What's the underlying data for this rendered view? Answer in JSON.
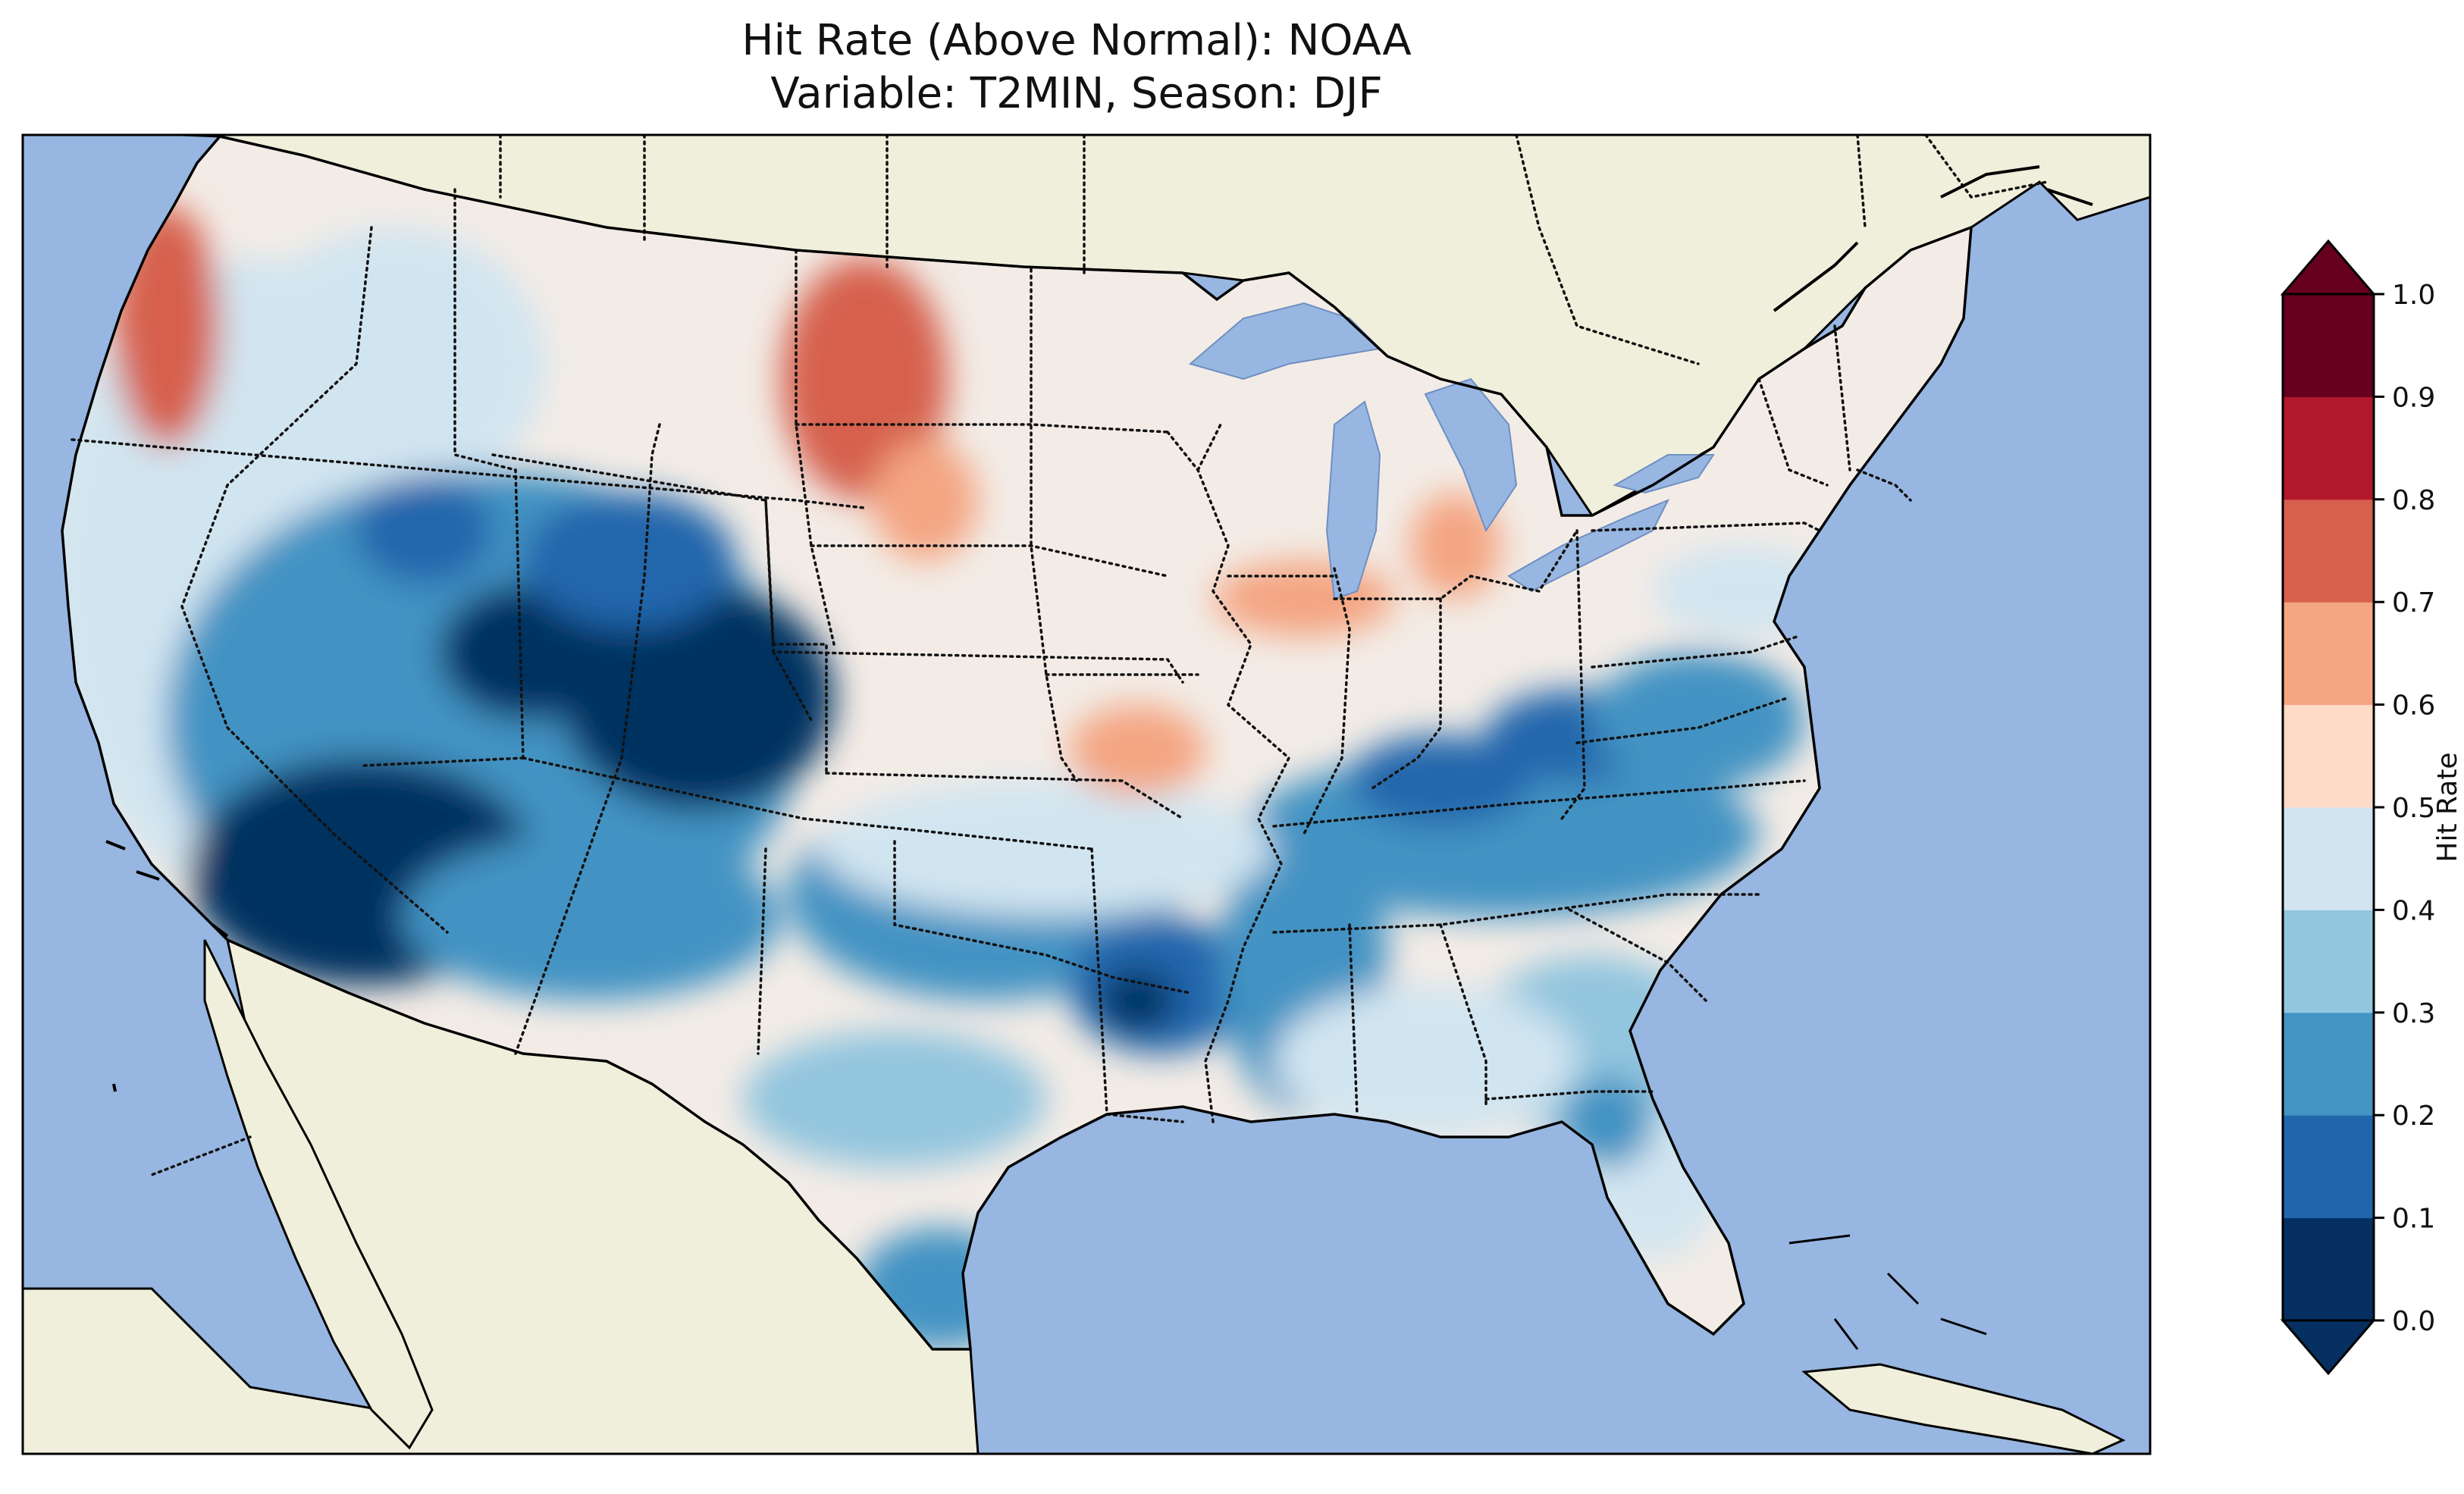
{
  "title": {
    "line1": "Hit Rate (Above Normal): NOAA",
    "line2": "Variable: T2MIN, Season: DJF"
  },
  "colorbar": {
    "label": "Hit Rate",
    "ticks": [
      "0.0",
      "0.1",
      "0.2",
      "0.3",
      "0.4",
      "0.5",
      "0.6",
      "0.7",
      "0.8",
      "0.9",
      "1.0"
    ],
    "colors": [
      "#053061",
      "#2166ac",
      "#4393c3",
      "#92c5de",
      "#d1e5f0",
      "#fddbc7",
      "#f4a582",
      "#d6604d",
      "#b2182b",
      "#67001f"
    ],
    "extend": "both"
  },
  "map": {
    "projection": "contiguous-united-states",
    "ocean_color": "#97b6e1",
    "land_color": "#efefdb",
    "lake_color": "#97b6e1"
  }
}
